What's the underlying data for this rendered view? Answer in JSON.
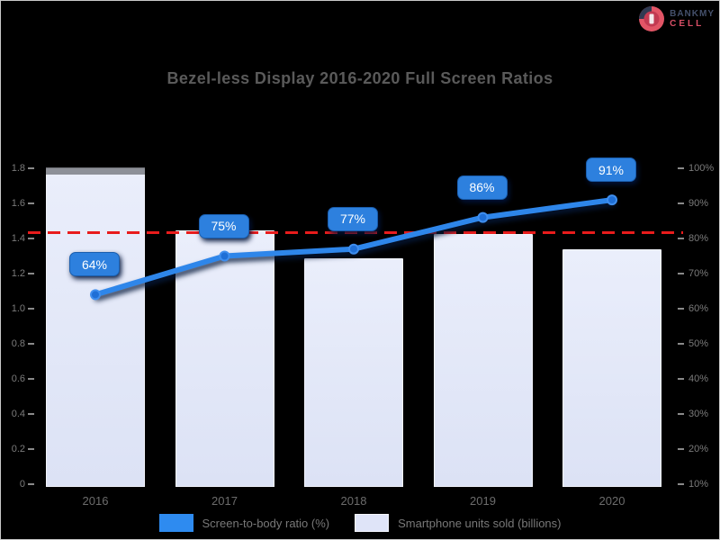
{
  "page": {
    "background": "#000000",
    "border_color": "#c9c9c9"
  },
  "logo": {
    "icon": "phone-circle-logo-icon",
    "line1": "BANKMY",
    "line2": "CELL",
    "circle_color": "#e25566",
    "wedge_color": "#2f3a52"
  },
  "chart_data": {
    "type": "bar+line combo",
    "title": "Bezel-less Display 2016-2020 Full Screen Ratios",
    "categories": [
      "2016",
      "2017",
      "2018",
      "2019",
      "2020"
    ],
    "series": [
      {
        "name": "Screen-to-body ratio (%)",
        "type": "line",
        "axis": "right",
        "values": [
          64,
          75,
          77,
          86,
          91
        ],
        "labels": [
          "64%",
          "75%",
          "77%",
          "86%",
          "91%"
        ],
        "color": "#2e86ea"
      },
      {
        "name": "Smartphone units sold (billions)",
        "type": "bar",
        "axis": "left",
        "values": [
          1.8,
          1.45,
          1.29,
          1.43,
          1.34
        ],
        "color": "#dde3f5"
      }
    ],
    "left_axis": {
      "min": 0,
      "max": 1.8,
      "ticks": [
        "1.8",
        "1.6",
        "1.4",
        "1.2",
        "1.0",
        "0.8",
        "0.6",
        "0.4",
        "0.2",
        "0"
      ]
    },
    "right_axis": {
      "min": 0,
      "max": 100,
      "ticks": [
        "100%",
        "90%",
        "80%",
        "70%",
        "60%",
        "50%",
        "40%",
        "30%",
        "20%",
        "10%"
      ]
    },
    "reference_line": {
      "value_percent": 80,
      "color": "#e81c1c",
      "style": "dashed"
    },
    "legend_position": "bottom",
    "grid": false,
    "colors": {
      "background": "#000000",
      "title": "#5a5a5a",
      "bar_fill": "#dde3f5",
      "line": "#2e86ea",
      "badge": "#2d80de",
      "reference": "#e81c1c",
      "axis_text": "#7b7b7b"
    }
  }
}
